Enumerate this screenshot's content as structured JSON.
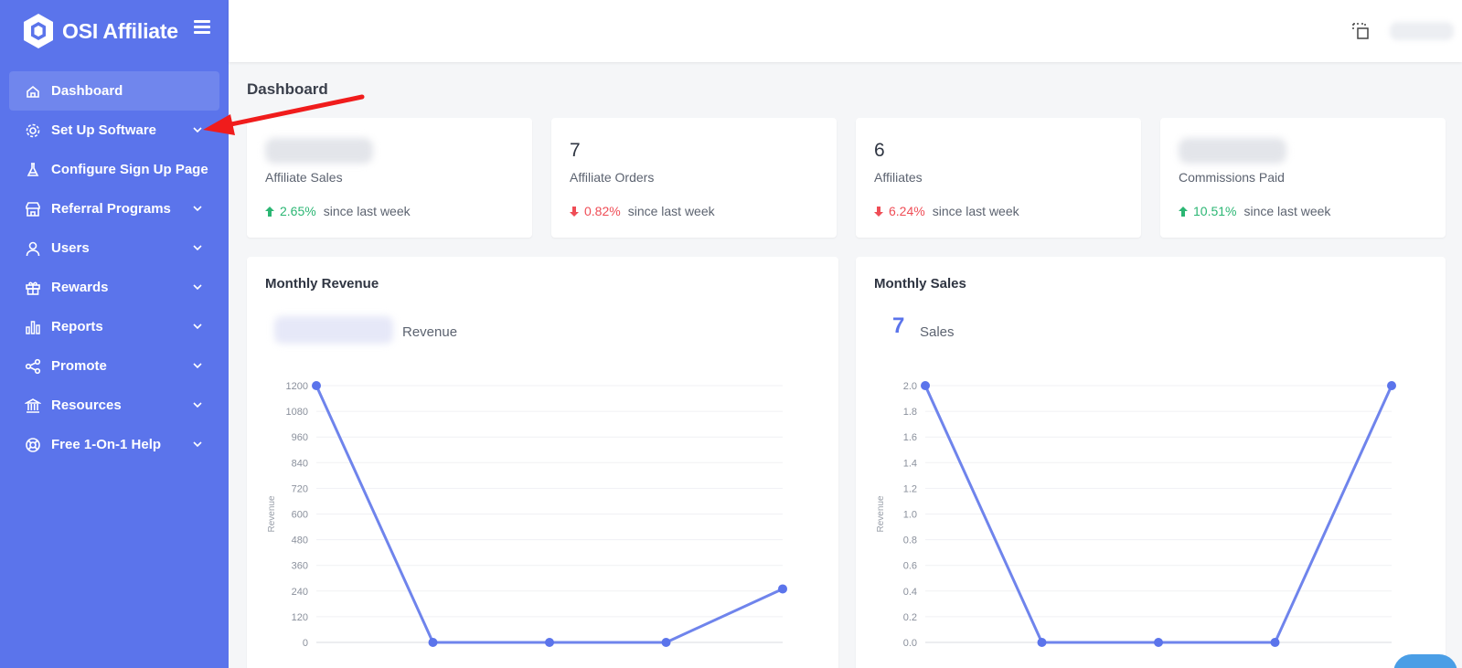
{
  "brand": {
    "title": "OSI Affiliate"
  },
  "sidebar": {
    "items": [
      {
        "label": "Dashboard",
        "icon": "home-icon",
        "active": true,
        "has_chevron": false
      },
      {
        "label": "Set Up Software",
        "icon": "gear-icon",
        "has_chevron": true
      },
      {
        "label": "Configure Sign Up Page",
        "icon": "flask-icon",
        "has_chevron": false
      },
      {
        "label": "Referral Programs",
        "icon": "store-icon",
        "has_chevron": true
      },
      {
        "label": "Users",
        "icon": "user-icon",
        "has_chevron": true
      },
      {
        "label": "Rewards",
        "icon": "gift-icon",
        "has_chevron": true
      },
      {
        "label": "Reports",
        "icon": "bar-chart-icon",
        "has_chevron": true
      },
      {
        "label": "Promote",
        "icon": "share-icon",
        "has_chevron": true
      },
      {
        "label": "Resources",
        "icon": "bank-icon",
        "has_chevron": true
      },
      {
        "label": "Free 1-On-1 Help",
        "icon": "lifebuoy-icon",
        "has_chevron": true
      }
    ]
  },
  "page": {
    "title": "Dashboard"
  },
  "stats": [
    {
      "value": "",
      "label": "Affiliate Sales",
      "change": "2.65%",
      "direction": "up",
      "suffix": "since last week"
    },
    {
      "value": "7",
      "label": "Affiliate Orders",
      "change": "0.82%",
      "direction": "down",
      "suffix": "since last week"
    },
    {
      "value": "6",
      "label": "Affiliates",
      "change": "6.24%",
      "direction": "down",
      "suffix": "since last week"
    },
    {
      "value": "",
      "label": "Commissions Paid",
      "change": "10.51%",
      "direction": "up",
      "suffix": "since last week"
    }
  ],
  "colors": {
    "accent": "#5b74eb",
    "line": "#6f84ec",
    "up": "#2bb673",
    "down": "#ef4d56",
    "annotation": "#f01c1c"
  },
  "charts": {
    "revenue": {
      "title": "Monthly Revenue",
      "summary_label": "Revenue"
    },
    "sales": {
      "title": "Monthly Sales",
      "summary_value": "7",
      "summary_label": "Sales"
    }
  },
  "chart_data": [
    {
      "type": "line",
      "title": "Monthly Revenue",
      "ylabel": "Revenue",
      "xlabel": "",
      "ylim": [
        0,
        1200
      ],
      "yticks": [
        0,
        120,
        240,
        360,
        480,
        600,
        720,
        840,
        960,
        1080,
        1200
      ],
      "ytick_labels": [
        "0",
        "120",
        "240",
        "360",
        "480",
        "600",
        "720",
        "840",
        "960",
        "1080",
        "1200"
      ],
      "values": [
        1200,
        0,
        0,
        0,
        250
      ],
      "grid": true
    },
    {
      "type": "line",
      "title": "Monthly Sales",
      "ylabel": "Revenue",
      "xlabel": "",
      "ylim": [
        0,
        2.0
      ],
      "yticks": [
        0,
        0.2,
        0.4,
        0.6,
        0.8,
        1.0,
        1.2,
        1.4,
        1.6,
        1.8,
        2.0
      ],
      "ytick_labels": [
        "0.0",
        "0.2",
        "0.4",
        "0.6",
        "0.8",
        "1.0",
        "1.2",
        "1.4",
        "1.6",
        "1.8",
        "2.0"
      ],
      "values": [
        2,
        0,
        0,
        0,
        2
      ],
      "grid": true
    }
  ]
}
